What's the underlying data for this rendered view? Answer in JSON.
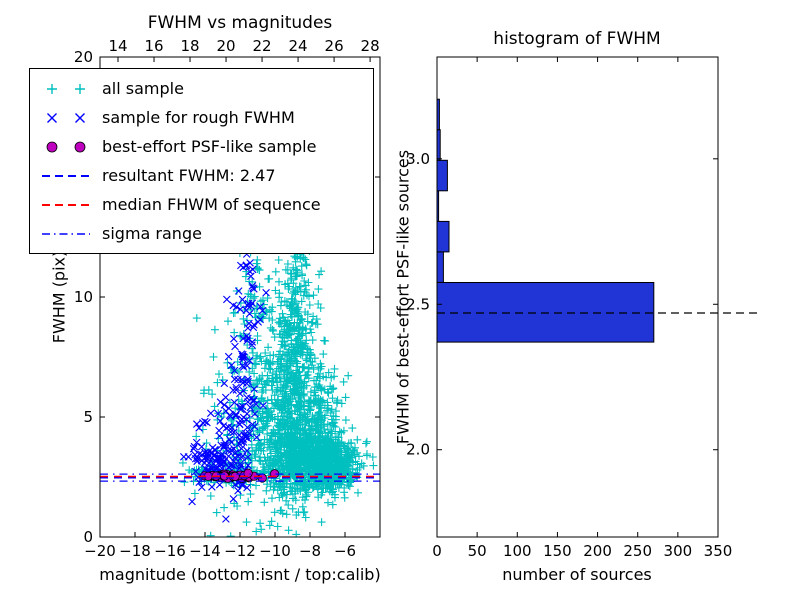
{
  "chart_data": [
    {
      "type": "scatter",
      "title": "FWHM vs magnitudes",
      "xlabel": "magnitude (bottom:isnt / top:calib)",
      "ylabel": "FWHM (pix)",
      "xlim": [
        -20,
        -4
      ],
      "ylim": [
        0,
        20
      ],
      "top_axis_lim": [
        13.0,
        28.55
      ],
      "xticks": [
        -20,
        -18,
        -16,
        -14,
        -12,
        -10,
        -8,
        -6
      ],
      "xtick_labels": [
        "−20",
        "−18",
        "−16",
        "−14",
        "−12",
        "−10",
        "−8",
        "−6"
      ],
      "top_xticks": [
        14,
        16,
        18,
        20,
        22,
        24,
        26,
        28
      ],
      "top_xtick_labels": [
        "14",
        "16",
        "18",
        "20",
        "22",
        "24",
        "26",
        "28"
      ],
      "yticks": [
        0,
        5,
        10,
        15,
        20
      ],
      "ytick_labels": [
        "0",
        "5",
        "10",
        "15",
        "20"
      ],
      "series": [
        {
          "name": "all-sample",
          "label": "all sample",
          "marker": "plus",
          "color": "#00bfbf",
          "clusters": [
            [
              -8.8,
              7.0,
              0.55,
              3.0,
              550
            ],
            [
              -8.3,
              3.3,
              1.2,
              0.7,
              650
            ],
            [
              -6.7,
              2.8,
              0.75,
              0.45,
              350
            ],
            [
              -7.4,
              4.8,
              0.7,
              1.4,
              220
            ],
            [
              -9.7,
              4.5,
              0.7,
              1.6,
              200
            ],
            [
              -10.6,
              6.5,
              0.7,
              2.5,
              150
            ],
            [
              -12.2,
              4.2,
              1.1,
              1.8,
              110
            ],
            [
              -13.0,
              2.6,
              1.0,
              0.18,
              90
            ],
            [
              -9.2,
              15.5,
              0.9,
              2.2,
              40
            ],
            [
              -11.3,
              9.0,
              0.7,
              1.8,
              50
            ]
          ]
        },
        {
          "name": "rough-fwhm-sample",
          "label": "sample for rough FWHM",
          "marker": "x",
          "color": "#0000ff",
          "clusters": [
            [
              -11.9,
              6.5,
              0.45,
              2.6,
              100
            ],
            [
              -12.7,
              3.8,
              0.7,
              1.2,
              60
            ],
            [
              -13.5,
              2.9,
              0.6,
              0.35,
              45
            ],
            [
              -14.2,
              3.4,
              0.35,
              0.7,
              20
            ],
            [
              -11.4,
              10.8,
              0.4,
              1.2,
              25
            ]
          ]
        },
        {
          "name": "psf-like-sample",
          "label": "best-effort PSF-like sample",
          "marker": "circle",
          "color": "#bf00bf",
          "clusters": [
            [
              -12.6,
              2.52,
              0.8,
              0.05,
              55
            ]
          ]
        }
      ],
      "hlines": [
        {
          "name": "resultant-fwhm-line",
          "label": "resultant FWHM: 2.47",
          "y": 2.47,
          "color": "#0000ff",
          "style": "dashed"
        },
        {
          "name": "median-fwhm-line",
          "label": "median FHWM of sequence",
          "y": 2.52,
          "color": "#ff0000",
          "style": "dashed"
        },
        {
          "name": "sigma-range-low-line",
          "label": "sigma range",
          "y": 2.33,
          "color": "#0000ff",
          "style": "dashdot"
        },
        {
          "name": "sigma-range-high-line",
          "label": "sigma range",
          "y": 2.62,
          "color": "#0000ff",
          "style": "dashdot"
        }
      ],
      "resultant_fwhm": 2.47,
      "legend": {
        "entries": [
          {
            "label": "all sample",
            "type": "plus",
            "color": "#00bfbf"
          },
          {
            "label": "sample for rough FWHM",
            "type": "x",
            "color": "#0000ff"
          },
          {
            "label": "best-effort PSF-like sample",
            "type": "circle",
            "color": "#bf00bf"
          },
          {
            "label": "resultant FWHM: 2.47",
            "type": "dashed",
            "color": "#0000ff"
          },
          {
            "label": "median FHWM of sequence",
            "type": "dashed",
            "color": "#ff0000"
          },
          {
            "label": "sigma range",
            "type": "dashdot",
            "color": "#0000ff"
          }
        ]
      }
    },
    {
      "type": "bar",
      "orientation": "horizontal",
      "title": "histogram of FWHM",
      "xlabel": "number of sources",
      "ylabel": "FWHM of best-effort PSF-like sources",
      "xlim": [
        0,
        350
      ],
      "ylim": [
        1.7,
        3.35
      ],
      "xticks": [
        0,
        50,
        100,
        150,
        200,
        250,
        300,
        350
      ],
      "xtick_labels": [
        "0",
        "50",
        "100",
        "150",
        "200",
        "250",
        "300",
        "350"
      ],
      "yticks": [
        2.0,
        2.5,
        3.0
      ],
      "ytick_labels": [
        "2.0",
        "2.5",
        "3.0"
      ],
      "bar_color": "#2134d6",
      "bar_edge_color": "#000000",
      "bins": [
        {
          "y0": 2.37,
          "y1": 2.575,
          "count": 270
        },
        {
          "y0": 2.575,
          "y1": 2.68,
          "count": 8
        },
        {
          "y0": 2.68,
          "y1": 2.785,
          "count": 15
        },
        {
          "y0": 2.785,
          "y1": 2.89,
          "count": 2
        },
        {
          "y0": 2.89,
          "y1": 2.995,
          "count": 13
        },
        {
          "y0": 2.995,
          "y1": 3.1,
          "count": 4
        },
        {
          "y0": 3.1,
          "y1": 3.205,
          "count": 3
        }
      ],
      "median_line": {
        "y": 2.47,
        "color": "#000000",
        "style": "dashed"
      }
    }
  ]
}
